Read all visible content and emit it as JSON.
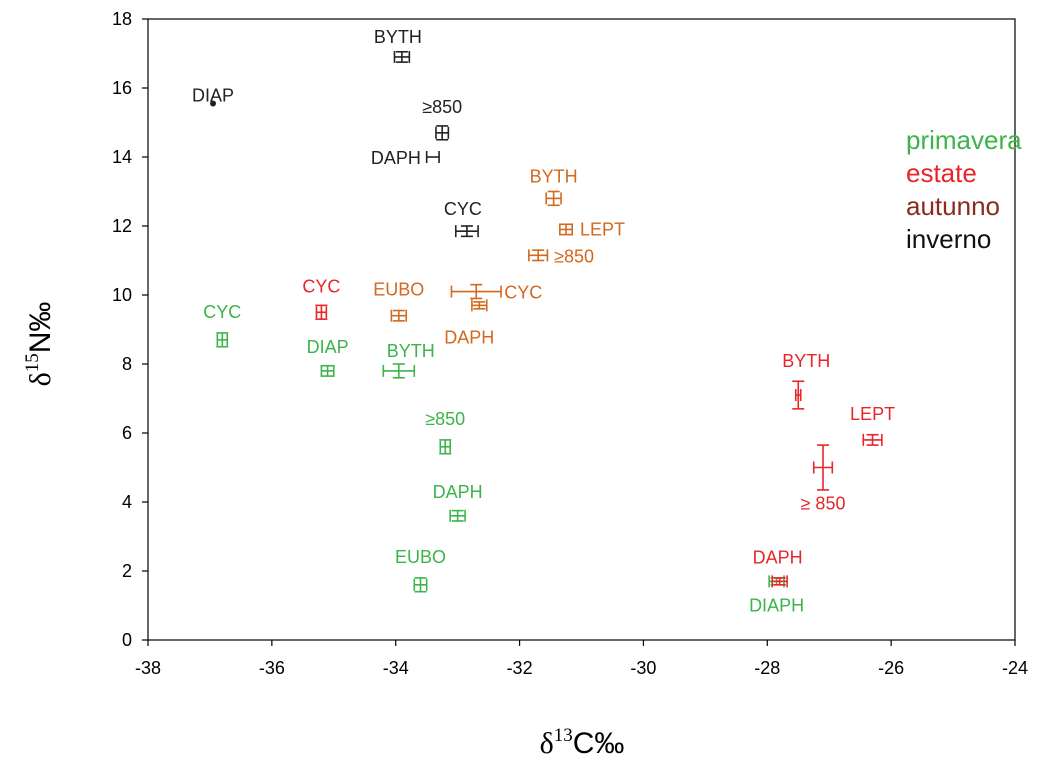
{
  "chart_data": {
    "type": "scatter",
    "title": "",
    "xlabel": {
      "base": "δ",
      "sup": "13",
      "rest": "C‰"
    },
    "ylabel": {
      "base": "δ",
      "sup": "15",
      "rest": "N‰"
    },
    "xlim": [
      -38,
      -24
    ],
    "ylim": [
      0,
      18
    ],
    "x_ticks": [
      -38,
      -36,
      -34,
      -32,
      -30,
      -28,
      -26,
      -24
    ],
    "y_ticks": [
      0,
      2,
      4,
      6,
      8,
      10,
      12,
      14,
      16,
      18
    ],
    "grid": false,
    "legend_position": "right",
    "series": [
      {
        "name": "primavera",
        "color": "#3cb44b",
        "points": [
          {
            "label": "CYC",
            "x": -36.8,
            "y": 8.7,
            "xerr": 0.08,
            "yerr": 0.2
          },
          {
            "label": "DIAP",
            "x": -35.1,
            "y": 7.8,
            "xerr": 0.1,
            "yerr": 0.15
          },
          {
            "label": "BYTH",
            "x": -33.95,
            "y": 7.8,
            "xerr": 0.25,
            "yerr": 0.2
          },
          {
            "label": "≥850",
            "x": -33.2,
            "y": 5.6,
            "xerr": 0.08,
            "yerr": 0.2
          },
          {
            "label": "DAPH",
            "x": -33.0,
            "y": 3.6,
            "xerr": 0.12,
            "yerr": 0.15
          },
          {
            "label": "EUBO",
            "x": -33.6,
            "y": 1.6,
            "xerr": 0.1,
            "yerr": 0.2
          },
          {
            "label": "DIAPH",
            "x": -27.85,
            "y": 1.7,
            "xerr": 0.12,
            "yerr": 0.1
          }
        ]
      },
      {
        "name": "estate",
        "color": "#e8262a",
        "points": [
          {
            "label": "CYC",
            "x": -35.2,
            "y": 9.5,
            "xerr": 0.08,
            "yerr": 0.2
          },
          {
            "label": "BYTH",
            "x": -27.5,
            "y": 7.1,
            "xerr": 0.04,
            "yerr": 0.4
          },
          {
            "label": "LEPT",
            "x": -26.3,
            "y": 5.8,
            "xerr": 0.15,
            "yerr": 0.15
          },
          {
            "label": "≥ 850",
            "x": -27.1,
            "y": 5.0,
            "xerr": 0.15,
            "yerr": 0.65
          },
          {
            "label": "DAPH",
            "x": -27.8,
            "y": 1.7,
            "xerr": 0.12,
            "yerr": 0.1
          }
        ]
      },
      {
        "name": "autunno",
        "color": "#d2691e",
        "points": [
          {
            "label": "BYTH",
            "x": -31.45,
            "y": 12.8,
            "xerr": 0.12,
            "yerr": 0.2
          },
          {
            "label": "LEPT",
            "x": -31.25,
            "y": 11.9,
            "xerr": 0.1,
            "yerr": 0.15
          },
          {
            "label": "≥850",
            "x": -31.7,
            "y": 11.15,
            "xerr": 0.15,
            "yerr": 0.15
          },
          {
            "label": "EUBO",
            "x": -33.95,
            "y": 9.4,
            "xerr": 0.12,
            "yerr": 0.15
          },
          {
            "label": "CYC",
            "x": -32.7,
            "y": 10.1,
            "xerr": 0.4,
            "yerr": 0.2
          },
          {
            "label": "DAPH",
            "x": -32.65,
            "y": 9.7,
            "xerr": 0.12,
            "yerr": 0.1
          }
        ]
      },
      {
        "name": "inverno",
        "color": "#222222",
        "points": [
          {
            "label": "BYTH",
            "x": -33.9,
            "y": 16.9,
            "xerr": 0.12,
            "yerr": 0.15
          },
          {
            "label": "DIAP",
            "x": -36.95,
            "y": 15.55,
            "xerr": 0,
            "yerr": 0
          },
          {
            "label": "≥850",
            "x": -33.25,
            "y": 14.7,
            "xerr": 0.1,
            "yerr": 0.2
          },
          {
            "label": "DAPH",
            "x": -33.4,
            "y": 14.0,
            "xerr": 0.1,
            "yerr": 0
          },
          {
            "label": "CYC",
            "x": -32.85,
            "y": 11.85,
            "xerr": 0.18,
            "yerr": 0.15
          }
        ]
      }
    ]
  },
  "legend": {
    "entries": [
      {
        "label": "primavera",
        "color": "#3cb44b"
      },
      {
        "label": "estate",
        "color": "#e8262a"
      },
      {
        "label": "autunno",
        "color": "#8b2a1e"
      },
      {
        "label": "inverno",
        "color": "#111111"
      }
    ]
  }
}
